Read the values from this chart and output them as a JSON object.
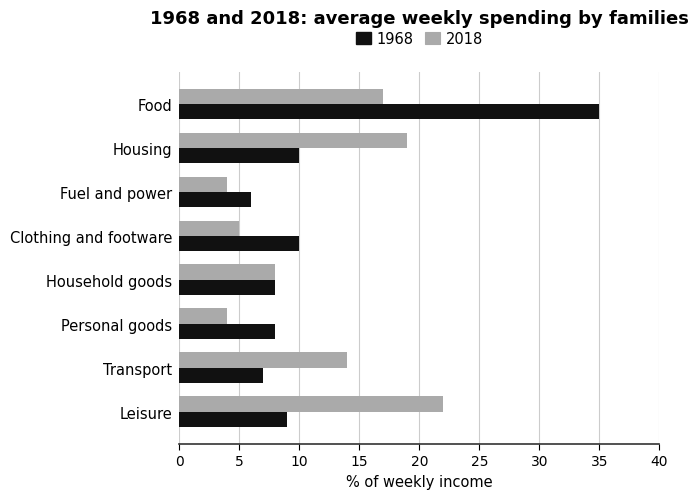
{
  "title": "1968 and 2018: average weekly spending by families",
  "categories": [
    "Food",
    "Housing",
    "Fuel and power",
    "Clothing and footware",
    "Household goods",
    "Personal goods",
    "Transport",
    "Leisure"
  ],
  "values_1968": [
    35,
    10,
    6,
    10,
    8,
    8,
    7,
    9
  ],
  "values_2018": [
    17,
    19,
    4,
    5,
    8,
    4,
    14,
    22
  ],
  "color_1968": "#111111",
  "color_2018": "#aaaaaa",
  "xlabel": "% of weekly income",
  "xlim": [
    0,
    40
  ],
  "xticks": [
    0,
    5,
    10,
    15,
    20,
    25,
    30,
    35,
    40
  ],
  "legend_labels": [
    "1968",
    "2018"
  ],
  "bar_height": 0.35,
  "background_color": "#ffffff",
  "title_fontsize": 13,
  "label_fontsize": 10.5,
  "tick_fontsize": 10
}
